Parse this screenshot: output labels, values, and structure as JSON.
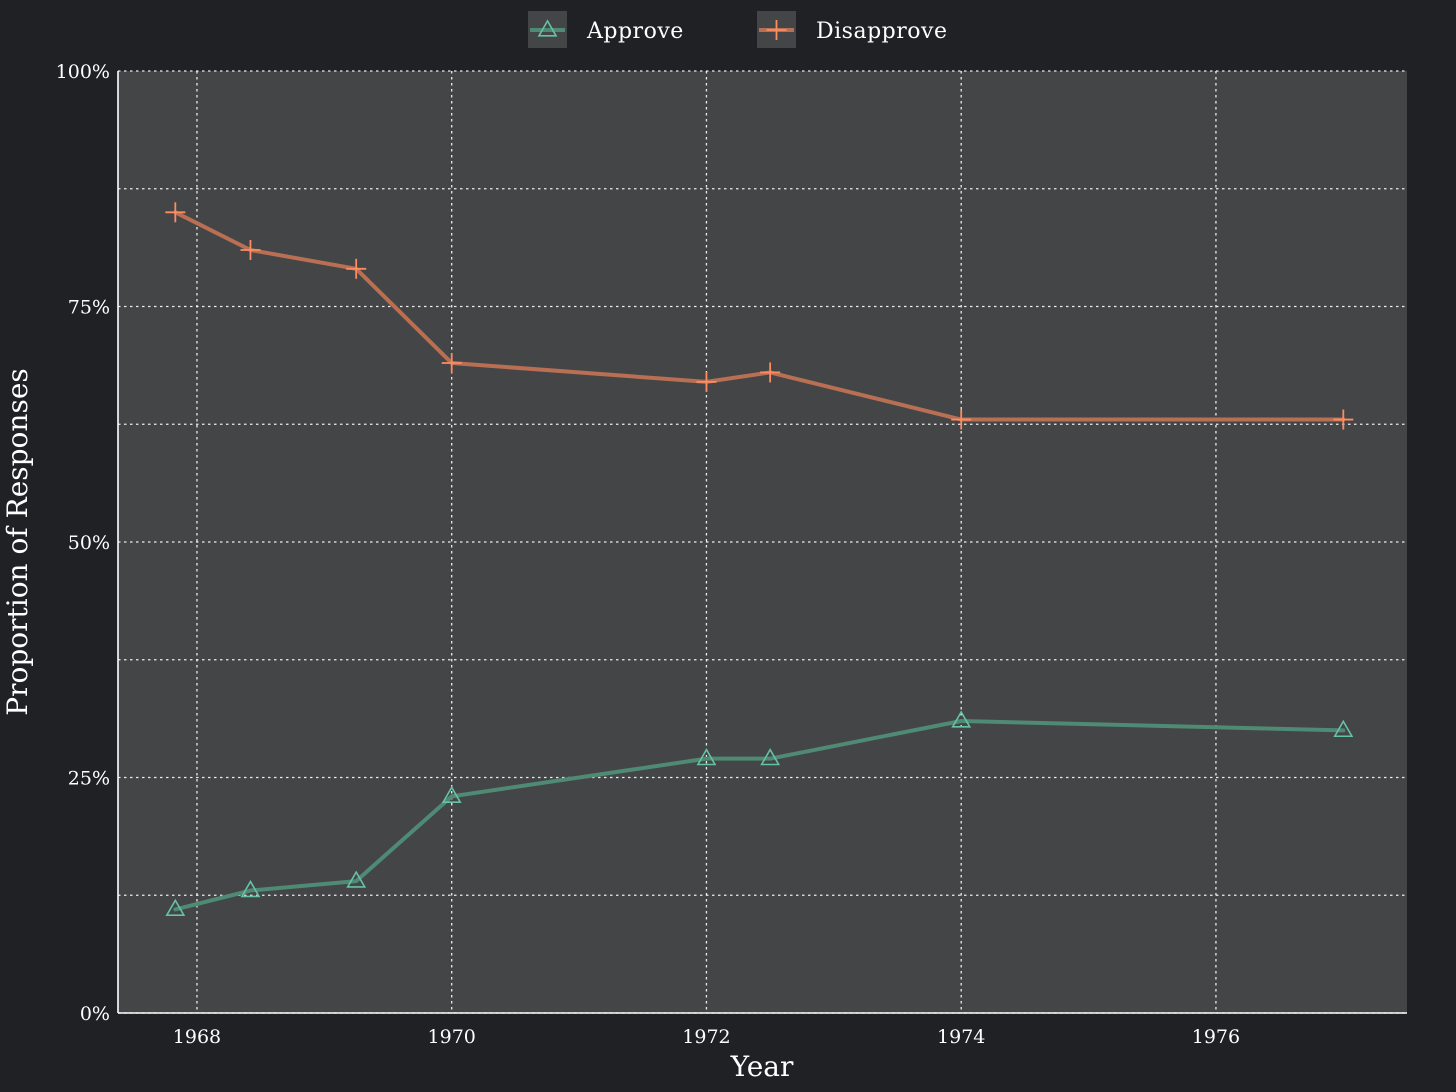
{
  "chart_data": {
    "type": "line",
    "title": "",
    "xlabel": "Year",
    "ylabel": "Proportion of Responses",
    "xlim": [
      1967.38,
      1977.5
    ],
    "ylim": [
      0,
      1
    ],
    "x_ticks": [
      1968,
      1970,
      1972,
      1974,
      1976
    ],
    "x_tick_labels": [
      "1968",
      "1970",
      "1972",
      "1974",
      "1976"
    ],
    "y_ticks": [
      0,
      0.25,
      0.5,
      0.75,
      1.0
    ],
    "y_tick_labels": [
      "0%",
      "25%",
      "50%",
      "75%",
      "100%"
    ],
    "y_minor_grid": [
      0.125,
      0.375,
      0.625,
      0.875
    ],
    "grid": true,
    "legend_position": "top-center",
    "series": [
      {
        "name": "Approve",
        "marker": "triangle",
        "line_color": "#4e8a74",
        "marker_color": "#66c2a5",
        "x": [
          1967.83,
          1968.42,
          1969.25,
          1970.0,
          1972.0,
          1972.5,
          1974.0,
          1977.0
        ],
        "values": [
          0.11,
          0.13,
          0.14,
          0.23,
          0.27,
          0.27,
          0.31,
          0.3
        ]
      },
      {
        "name": "Disapprove",
        "marker": "plus",
        "line_color": "#b86f53",
        "marker_color": "#fc8d62",
        "x": [
          1967.83,
          1968.42,
          1969.25,
          1970.0,
          1972.0,
          1972.5,
          1974.0,
          1977.0
        ],
        "values": [
          0.85,
          0.81,
          0.79,
          0.69,
          0.67,
          0.68,
          0.63,
          0.63
        ]
      }
    ]
  },
  "colors": {
    "background": "#202124",
    "panel": "#444546",
    "grid": "#ffffff",
    "legend_key_bg": "#444546"
  }
}
